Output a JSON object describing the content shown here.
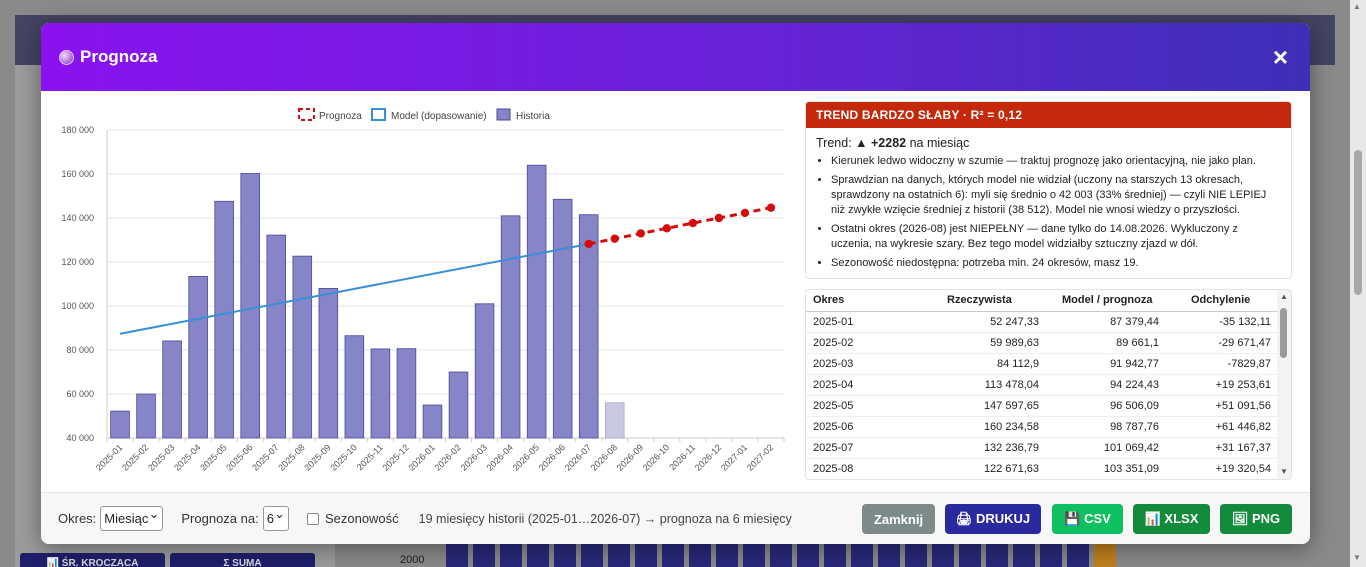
{
  "modal": {
    "title": "Prognoza",
    "close": "×"
  },
  "legend": {
    "forecast": "Prognoza",
    "model": "Model (dopasowanie)",
    "history": "Historia"
  },
  "chart_data": {
    "type": "bar",
    "categories": [
      "2025-01",
      "2025-02",
      "2025-03",
      "2025-04",
      "2025-05",
      "2025-06",
      "2025-07",
      "2025-08",
      "2025-09",
      "2025-10",
      "2025-11",
      "2025-12",
      "2026-01",
      "2026-02",
      "2026-03",
      "2026-04",
      "2026-05",
      "2026-06",
      "2026-07",
      "2026-08",
      "2026-09",
      "2026-10",
      "2026-11",
      "2026-12",
      "2027-01",
      "2027-02"
    ],
    "history": [
      52247,
      59990,
      84113,
      113478,
      147598,
      160235,
      132237,
      122672,
      108000,
      86500,
      80500,
      80600,
      55000,
      70000,
      101000,
      141000,
      164000,
      148500,
      141500
    ],
    "partial": {
      "category": "2026-08",
      "value": 56000
    },
    "model_line": {
      "start": {
        "x": "2025-01",
        "y": 87379
      },
      "end": {
        "x": "2026-07",
        "y": 128200
      }
    },
    "forecast": {
      "x": [
        "2026-07",
        "2026-08",
        "2026-09",
        "2026-10",
        "2026-11",
        "2026-12",
        "2027-01",
        "2027-02"
      ],
      "y": [
        128200,
        130600,
        133000,
        135300,
        137700,
        140000,
        142300,
        144700
      ]
    },
    "ylim": [
      40000,
      180000
    ],
    "yticks": [
      "40 000",
      "60 000",
      "80 000",
      "100 000",
      "120 000",
      "140 000",
      "160 000",
      "180 000"
    ],
    "ytick_values": [
      40000,
      60000,
      80000,
      100000,
      120000,
      140000,
      160000,
      180000
    ],
    "colors": {
      "bar": "#8585c8",
      "bar_border": "#4a4a9a",
      "partial": "#c8c8e0",
      "model": "#3a8fd8",
      "forecast": "#d40c0c"
    }
  },
  "trend": {
    "header": "TREND BARDZO SŁABY  ·  R² = 0,12",
    "prefix": "Trend:",
    "value": "▲ +2282",
    "suffix": "na miesiąc",
    "items": [
      "Kierunek ledwo widoczny w szumie — traktuj prognozę jako orientacyjną, nie jako plan.",
      "Sprawdzian na danych, których model nie widział (uczony na starszych 13 okresach, sprawdzony na ostatnich 6): myli się średnio o 42 003 (33% średniej) — czyli NIE LEPIEJ niż zwykłe wzięcie średniej z historii (38 512). Model nie wnosi wiedzy o przyszłości.",
      "Ostatni okres (2026-08) jest NIEPEŁNY — dane tylko do 14.08.2026. Wykluczony z uczenia, na wykresie szary. Bez tego model widziałby sztuczny zjazd w dół.",
      "Sezonowość niedostępna: potrzeba min. 24 okresów, masz 19."
    ]
  },
  "table": {
    "headers": [
      "Okres",
      "Rzeczywista",
      "Model / prognoza",
      "Odchylenie"
    ],
    "rows": [
      [
        "2025-01",
        "52 247,33",
        "87 379,44",
        "-35 132,11"
      ],
      [
        "2025-02",
        "59 989,63",
        "89 661,1",
        "-29 671,47"
      ],
      [
        "2025-03",
        "84 112,9",
        "91 942,77",
        "-7829,87"
      ],
      [
        "2025-04",
        "113 478,04",
        "94 224,43",
        "+19 253,61"
      ],
      [
        "2025-05",
        "147 597,65",
        "96 506,09",
        "+51 091,56"
      ],
      [
        "2025-06",
        "160 234,58",
        "98 787,76",
        "+61 446,82"
      ],
      [
        "2025-07",
        "132 236,79",
        "101 069,42",
        "+31 167,37"
      ],
      [
        "2025-08",
        "122 671,63",
        "103 351,09",
        "+19 320,54"
      ]
    ]
  },
  "footer": {
    "period_label": "Okres:",
    "period_value": "Miesiąc",
    "forecast_label": "Prognoza na:",
    "forecast_value": "6",
    "seasonality_label": "Sezonowość",
    "info": "19 miesięcy historii (2025-01…2026-07) → prognoza na 6 miesięcy",
    "buttons": {
      "close": "Zamknij",
      "print": "🖨 DRUKUJ",
      "csv": "💾 CSV",
      "xlsx": "📊 XLSX",
      "png": "🖼 PNG"
    },
    "button_colors": {
      "close": "#7c8a8a",
      "print": "#2a2aa0",
      "csv": "#0fc060",
      "xlsx": "#138a3c",
      "png": "#138a3c"
    }
  },
  "background": {
    "bottom_buttons": [
      "📊 ŚR. KROCZĄCA",
      "Σ SUMA"
    ],
    "axis_label": "2000"
  }
}
